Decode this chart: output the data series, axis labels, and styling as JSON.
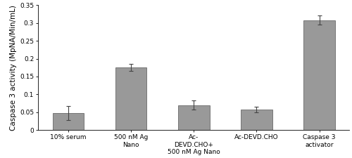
{
  "categories": [
    "10% serum",
    "500 nM Ag\nNano",
    "Ac-\nDEVD.CHO+\n500 nM Ag Nano",
    "Ac-DEVD.CHO",
    "Caspase 3\nactivator"
  ],
  "values": [
    0.048,
    0.175,
    0.07,
    0.057,
    0.308
  ],
  "errors": [
    0.02,
    0.01,
    0.012,
    0.008,
    0.013
  ],
  "bar_color": "#999999",
  "bar_edgecolor": "#555555",
  "ylabel": "Caspase 3 activity (MpNA/Min/mL)",
  "ylim": [
    0,
    0.35
  ],
  "yticks": [
    0,
    0.05,
    0.1,
    0.15,
    0.2,
    0.25,
    0.3,
    0.35
  ],
  "ytick_labels": [
    "0",
    "0.05",
    "0.1",
    "0.15",
    "0.2",
    "0.25",
    "0.3",
    "0.35"
  ],
  "bar_width": 0.5,
  "background_color": "#ffffff",
  "errorbar_capsize": 2,
  "errorbar_linewidth": 0.8,
  "errorbar_color": "#444444",
  "axis_linewidth": 0.6,
  "tick_fontsize": 6.5,
  "ylabel_fontsize": 7.5,
  "xlabel_fontsize": 6.5
}
